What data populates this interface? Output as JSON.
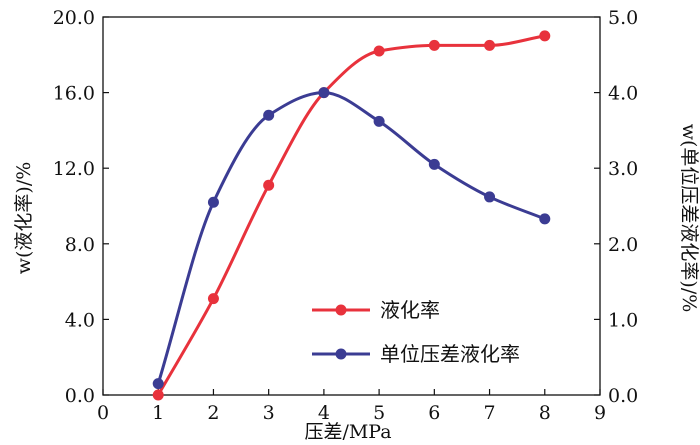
{
  "chart_data": {
    "type": "line",
    "title": "",
    "xlabel": "压差/MPa",
    "ylabel": "w(液化率)/%",
    "y2label": "w(单位压差液化率)/%",
    "x_ticks": [
      "0",
      "1",
      "2",
      "3",
      "4",
      "5",
      "6",
      "7",
      "8",
      "9"
    ],
    "y_ticks": [
      "0.0",
      "4.0",
      "8.0",
      "12.0",
      "16.0",
      "20.0"
    ],
    "y2_ticks": [
      "0.0",
      "1.0",
      "2.0",
      "3.0",
      "4.0",
      "5.0"
    ],
    "xlim": [
      0,
      9
    ],
    "ylim": [
      0,
      20
    ],
    "y2lim": [
      0,
      5
    ],
    "grid": false,
    "legend_position": "bottom-right",
    "series": [
      {
        "name": "液化率",
        "axis": "left",
        "color": "#e8323c",
        "x": [
          1,
          2,
          3,
          4,
          5,
          6,
          7,
          8
        ],
        "values": [
          0.0,
          5.1,
          11.1,
          16.0,
          18.2,
          18.5,
          18.5,
          19.0
        ]
      },
      {
        "name": "单位压差液化率",
        "axis": "right",
        "color": "#3b3c93",
        "x": [
          1,
          2,
          3,
          4,
          5,
          6,
          7,
          8
        ],
        "values": [
          0.15,
          2.55,
          3.7,
          4.0,
          3.62,
          3.05,
          2.62,
          2.33
        ]
      }
    ]
  }
}
